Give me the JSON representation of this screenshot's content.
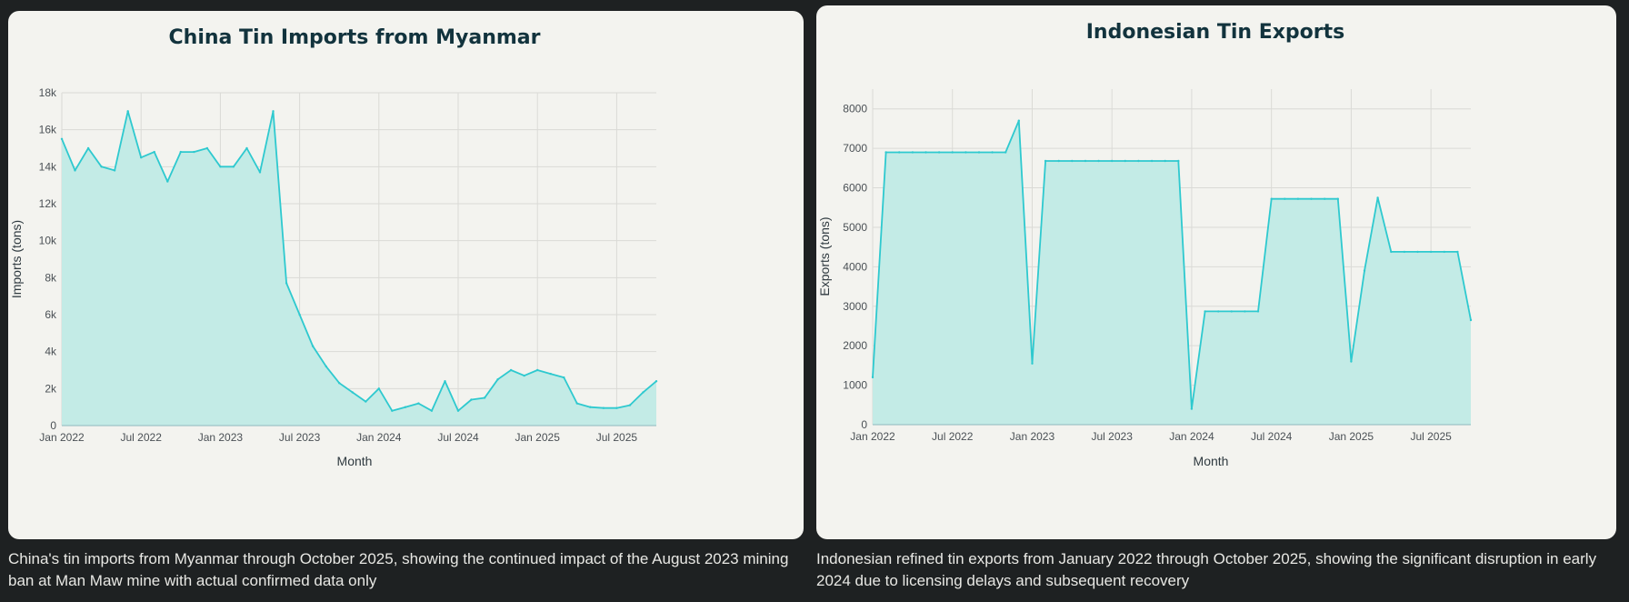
{
  "colors": {
    "line": "#2ec9cf",
    "fill": "#c3ebe6",
    "page_bg": "#1e2122",
    "panel_bg": "#f3f3ef"
  },
  "captions": {
    "left": "China's tin imports from Myanmar through October 2025, showing the continued impact of the August 2023 mining ban at Man Maw mine with actual confirmed data only",
    "right": "Indonesian refined tin exports from January 2022 through October 2025, showing the significant disruption in early 2024 due to licensing delays and subsequent recovery"
  },
  "chart_data": [
    {
      "type": "area",
      "title": "China Tin Imports from Myanmar",
      "xlabel": "Month",
      "ylabel": "Imports (tons)",
      "ylim": [
        0,
        18000
      ],
      "xlim": [
        "2022-01",
        "2025-10"
      ],
      "grid": true,
      "y_ticks": [
        {
          "v": 0,
          "label": "0"
        },
        {
          "v": 2000,
          "label": "2k"
        },
        {
          "v": 4000,
          "label": "4k"
        },
        {
          "v": 6000,
          "label": "6k"
        },
        {
          "v": 8000,
          "label": "8k"
        },
        {
          "v": 10000,
          "label": "10k"
        },
        {
          "v": 12000,
          "label": "12k"
        },
        {
          "v": 14000,
          "label": "14k"
        },
        {
          "v": 16000,
          "label": "16k"
        },
        {
          "v": 18000,
          "label": "18k"
        }
      ],
      "x_ticks": [
        {
          "v": "2022-01",
          "label": "Jan 2022"
        },
        {
          "v": "2022-07",
          "label": "Jul 2022"
        },
        {
          "v": "2023-01",
          "label": "Jan 2023"
        },
        {
          "v": "2023-07",
          "label": "Jul 2023"
        },
        {
          "v": "2024-01",
          "label": "Jan 2024"
        },
        {
          "v": "2024-07",
          "label": "Jul 2024"
        },
        {
          "v": "2025-01",
          "label": "Jan 2025"
        },
        {
          "v": "2025-07",
          "label": "Jul 2025"
        }
      ],
      "x": [
        "2022-01",
        "2022-02",
        "2022-03",
        "2022-04",
        "2022-05",
        "2022-06",
        "2022-07",
        "2022-08",
        "2022-09",
        "2022-10",
        "2022-11",
        "2022-12",
        "2023-01",
        "2023-02",
        "2023-03",
        "2023-04",
        "2023-05",
        "2023-06",
        "2023-07",
        "2023-08",
        "2023-09",
        "2023-10",
        "2023-11",
        "2023-12",
        "2024-01",
        "2024-02",
        "2024-03",
        "2024-04",
        "2024-05",
        "2024-06",
        "2024-07",
        "2024-08",
        "2024-09",
        "2024-10",
        "2024-11",
        "2024-12",
        "2025-01",
        "2025-02",
        "2025-03",
        "2025-04",
        "2025-05",
        "2025-06",
        "2025-07",
        "2025-08",
        "2025-09",
        "2025-10"
      ],
      "values": [
        15500,
        13800,
        15000,
        14000,
        13800,
        17000,
        14500,
        14800,
        13200,
        14800,
        14800,
        15000,
        14000,
        14000,
        15000,
        13700,
        17000,
        7700,
        6000,
        4300,
        3200,
        2300,
        1800,
        1300,
        2000,
        800,
        1000,
        1200,
        800,
        2400,
        800,
        1400,
        1500,
        2500,
        3000,
        2700,
        3000,
        2800,
        2600,
        1200,
        1000,
        950,
        950,
        1100,
        1800,
        2400
      ]
    },
    {
      "type": "area",
      "title": "Indonesian Tin Exports",
      "xlabel": "Month",
      "ylabel": "Exports (tons)",
      "ylim": [
        0,
        8500
      ],
      "xlim": [
        "2022-01",
        "2025-10"
      ],
      "grid": true,
      "y_ticks": [
        {
          "v": 0,
          "label": "0"
        },
        {
          "v": 1000,
          "label": "1000"
        },
        {
          "v": 2000,
          "label": "2000"
        },
        {
          "v": 3000,
          "label": "3000"
        },
        {
          "v": 4000,
          "label": "4000"
        },
        {
          "v": 5000,
          "label": "5000"
        },
        {
          "v": 6000,
          "label": "6000"
        },
        {
          "v": 7000,
          "label": "7000"
        },
        {
          "v": 8000,
          "label": "8000"
        }
      ],
      "x_ticks": [
        {
          "v": "2022-01",
          "label": "Jan 2022"
        },
        {
          "v": "2022-07",
          "label": "Jul 2022"
        },
        {
          "v": "2023-01",
          "label": "Jan 2023"
        },
        {
          "v": "2023-07",
          "label": "Jul 2023"
        },
        {
          "v": "2024-01",
          "label": "Jan 2024"
        },
        {
          "v": "2024-07",
          "label": "Jul 2024"
        },
        {
          "v": "2025-01",
          "label": "Jan 2025"
        },
        {
          "v": "2025-07",
          "label": "Jul 2025"
        }
      ],
      "x": [
        "2022-01",
        "2022-02",
        "2022-03",
        "2022-04",
        "2022-05",
        "2022-06",
        "2022-07",
        "2022-08",
        "2022-09",
        "2022-10",
        "2022-11",
        "2022-12",
        "2023-01",
        "2023-02",
        "2023-03",
        "2023-04",
        "2023-05",
        "2023-06",
        "2023-07",
        "2023-08",
        "2023-09",
        "2023-10",
        "2023-11",
        "2023-12",
        "2024-01",
        "2024-02",
        "2024-03",
        "2024-04",
        "2024-05",
        "2024-06",
        "2024-07",
        "2024-08",
        "2024-09",
        "2024-10",
        "2024-11",
        "2024-12",
        "2025-01",
        "2025-02",
        "2025-03",
        "2025-04",
        "2025-05",
        "2025-06",
        "2025-07",
        "2025-08",
        "2025-09",
        "2025-10"
      ],
      "values": [
        1200,
        6900,
        6900,
        6900,
        6900,
        6900,
        6900,
        6900,
        6900,
        6900,
        6900,
        7700,
        1550,
        6680,
        6680,
        6680,
        6680,
        6680,
        6680,
        6680,
        6680,
        6680,
        6680,
        6680,
        400,
        2870,
        2870,
        2870,
        2870,
        2870,
        5720,
        5720,
        5720,
        5720,
        5720,
        5720,
        1600,
        3900,
        5750,
        4380,
        4380,
        4380,
        4380,
        4380,
        4380,
        2650
      ]
    }
  ]
}
